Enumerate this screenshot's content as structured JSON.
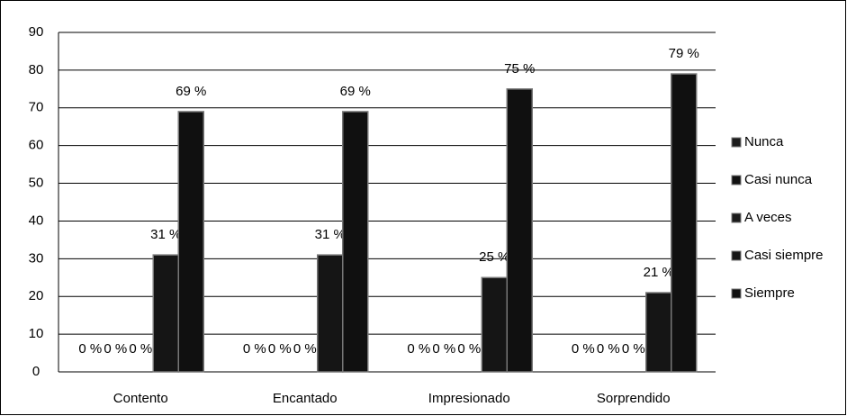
{
  "chart_data": {
    "type": "bar",
    "categories": [
      "Contento",
      "Encantado",
      "Impresionado",
      "Sorprendido"
    ],
    "series": [
      {
        "name": "Nunca",
        "color": "#1c1c1c",
        "values": [
          0,
          0,
          0,
          0
        ],
        "value_labels": [
          "0 %",
          "0 %",
          "0 %",
          "0 %"
        ]
      },
      {
        "name": "Casi nunca",
        "color": "#111111",
        "values": [
          0,
          0,
          0,
          0
        ],
        "value_labels": [
          "0 %",
          "0 %",
          "0 %",
          "0 %"
        ]
      },
      {
        "name": "A veces",
        "color": "#1c1c1c",
        "values": [
          0,
          0,
          0,
          0
        ],
        "value_labels": [
          "0 %",
          "0 %",
          "0 %",
          "0 %"
        ]
      },
      {
        "name": "Casi siempre",
        "color": "#151515",
        "values": [
          31,
          31,
          25,
          21
        ],
        "value_labels": [
          "31 %",
          "31 %",
          "25 %",
          "21 %"
        ]
      },
      {
        "name": "Siempre",
        "color": "#101010",
        "values": [
          69,
          69,
          75,
          79
        ],
        "value_labels": [
          "69 %",
          "69 %",
          "75 %",
          "79 %"
        ]
      }
    ],
    "ylim": [
      0,
      90
    ],
    "yticks": [
      0,
      10,
      20,
      30,
      40,
      50,
      60,
      70,
      80,
      90
    ],
    "grid": true,
    "legend": "right"
  }
}
